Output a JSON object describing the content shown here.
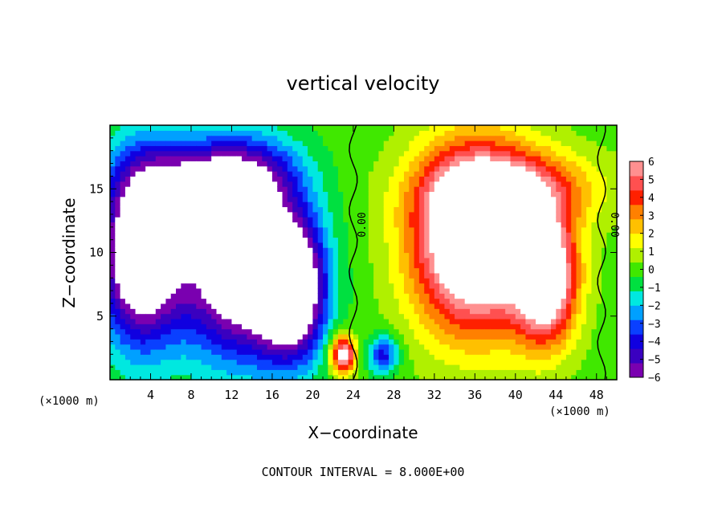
{
  "chart_data": {
    "type": "heatmap",
    "title": "vertical velocity",
    "xlabel": "X−coordinate",
    "ylabel": "Z−coordinate",
    "x_unit_left": "(×1000 m)",
    "x_unit_right": "(×1000 m)",
    "footer": "CONTOUR INTERVAL = 8.000E+00",
    "xlim": [
      0,
      50
    ],
    "ylim": [
      0,
      20
    ],
    "x_ticks": [
      4,
      8,
      12,
      16,
      20,
      24,
      28,
      32,
      36,
      40,
      44,
      48
    ],
    "x_tick_labels": [
      "4",
      "8",
      "12",
      "16",
      "20",
      "24",
      "28",
      "32",
      "36",
      "40",
      "44",
      "48"
    ],
    "y_ticks": [
      5,
      10,
      15
    ],
    "y_tick_labels": [
      "5",
      "10",
      "15"
    ],
    "colorbar": {
      "min": -6,
      "max": 6,
      "tick_values": [
        6,
        5,
        4,
        3,
        2,
        1,
        0,
        -1,
        -2,
        -3,
        -4,
        -5,
        -6
      ],
      "tick_labels": [
        "6",
        "5",
        "4",
        "3",
        "2",
        "1",
        "0",
        "−1",
        "−2",
        "−3",
        "−4",
        "−5",
        "−6"
      ],
      "colors": [
        "#7a00b0",
        "#3a00c0",
        "#1000e0",
        "#0a40ff",
        "#00a0ff",
        "#00e8e0",
        "#00e040",
        "#40e800",
        "#b0f000",
        "#ffff00",
        "#ffc000",
        "#ff8000",
        "#ff2000",
        "#ff5050",
        "#ff9090"
      ]
    },
    "contour_labels": [
      {
        "text": "0.00",
        "x": 24,
        "y": 12.5
      },
      {
        "text": "0.00",
        "x": 48.5,
        "y": 12.5
      }
    ],
    "features": [
      {
        "kind": "downdraft",
        "x": 3,
        "z": 10,
        "sx": 4,
        "sz": 7,
        "amp": -9
      },
      {
        "kind": "downdraft",
        "x": 13,
        "z": 9,
        "sx": 6,
        "sz": 7,
        "amp": -9
      },
      {
        "kind": "downdraft",
        "x": 8,
        "z": 16,
        "sx": 6,
        "sz": 3,
        "amp": -4
      },
      {
        "kind": "downdraft",
        "x": 14,
        "z": 16,
        "sx": 5,
        "sz": 3,
        "amp": -3
      },
      {
        "kind": "downdraft",
        "x": 18,
        "z": 7,
        "sx": 3,
        "sz": 5,
        "amp": -8
      },
      {
        "kind": "updraft",
        "x": 36,
        "z": 11,
        "sx": 6,
        "sz": 7,
        "amp": 10
      },
      {
        "kind": "updraft",
        "x": 43,
        "z": 8,
        "sx": 3,
        "sz": 5,
        "amp": 8
      },
      {
        "kind": "updraft",
        "x": 40,
        "z": 15,
        "sx": 8,
        "sz": 3,
        "amp": 4
      },
      {
        "kind": "updraft",
        "x": 23,
        "z": 2,
        "sx": 1.2,
        "sz": 1.5,
        "amp": 7
      },
      {
        "kind": "downdraft",
        "x": 27,
        "z": 2,
        "sx": 1.5,
        "sz": 1.5,
        "amp": -4
      }
    ]
  }
}
